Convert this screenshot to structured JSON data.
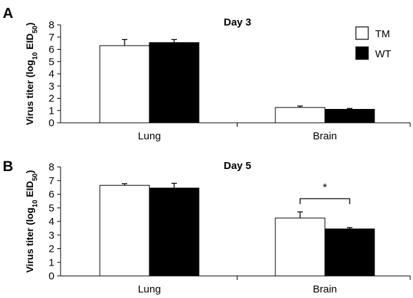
{
  "chart_data": [
    {
      "type": "bar",
      "panel": "A",
      "title": "Day 3",
      "ylabel": {
        "main": "Virus titer (log",
        "sub1": "10",
        "mid": " EID",
        "sub2": "50",
        "end": ")"
      },
      "ylim": [
        0,
        8
      ],
      "yticks": [
        0,
        1,
        2,
        3,
        4,
        5,
        6,
        7,
        8
      ],
      "categories": [
        "Lung",
        "Brain"
      ],
      "series": [
        {
          "name": "TM",
          "color": "#ffffff",
          "values": [
            6.3,
            1.25
          ],
          "errors": [
            0.5,
            0.12
          ]
        },
        {
          "name": "WT",
          "color": "#000000",
          "values": [
            6.55,
            1.1
          ],
          "errors": [
            0.25,
            0.07
          ]
        }
      ],
      "legend": {
        "position": "top-right",
        "entries": [
          "TM",
          "WT"
        ]
      },
      "annotations": []
    },
    {
      "type": "bar",
      "panel": "B",
      "title": "Day 5",
      "ylabel": {
        "main": "Virus titer (log",
        "sub1": "10",
        "mid": " EID",
        "sub2": "50",
        "end": ")"
      },
      "ylim": [
        0,
        8
      ],
      "yticks": [
        0,
        1,
        2,
        3,
        4,
        5,
        6,
        7,
        8
      ],
      "categories": [
        "Lung",
        "Brain"
      ],
      "series": [
        {
          "name": "TM",
          "color": "#ffffff",
          "values": [
            6.65,
            4.25
          ],
          "errors": [
            0.12,
            0.45
          ]
        },
        {
          "name": "WT",
          "color": "#000000",
          "values": [
            6.45,
            3.45
          ],
          "errors": [
            0.35,
            0.1
          ]
        }
      ],
      "annotations": [
        {
          "text": "*",
          "between": "Brain"
        }
      ]
    }
  ]
}
